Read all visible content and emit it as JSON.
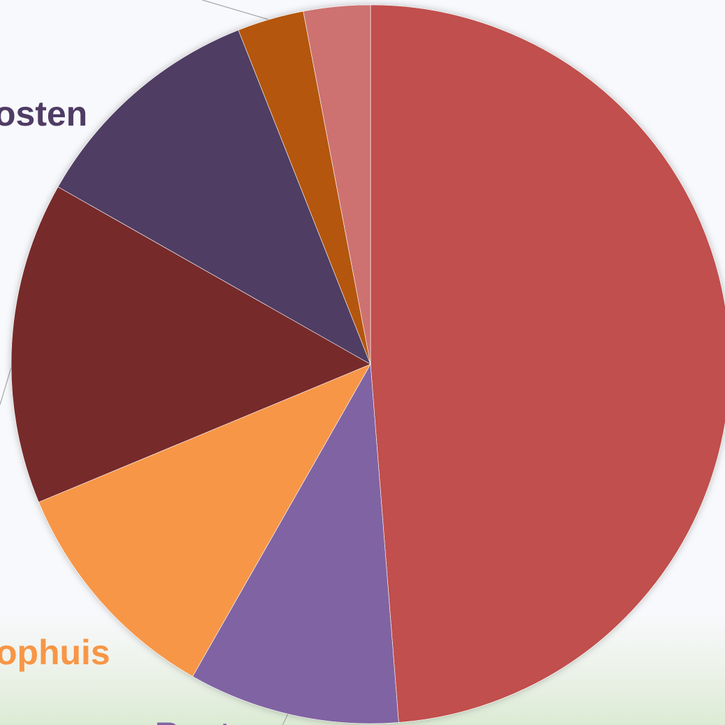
{
  "chart_data": {
    "type": "pie",
    "slices": [
      {
        "label": "",
        "value": 48.8,
        "color": "#c0504d"
      },
      {
        "label": "Best...",
        "value": 9.5,
        "color": "#8064a2"
      },
      {
        "label": "...ophuis",
        "value": 10.5,
        "color": "#f79646"
      },
      {
        "label": "",
        "value": 14.5,
        "color": "#772c2c"
      },
      {
        "label": "...osten",
        "value": 10.8,
        "color": "#4f3c64"
      },
      {
        "label": "",
        "value": 3.0,
        "color": "#b45608"
      },
      {
        "label": "",
        "value": 3.0,
        "color": "#cd7271"
      }
    ],
    "visible_label_fragments": {
      "kosten": "osten",
      "ophuis": "ophuis",
      "best": "Best"
    }
  }
}
